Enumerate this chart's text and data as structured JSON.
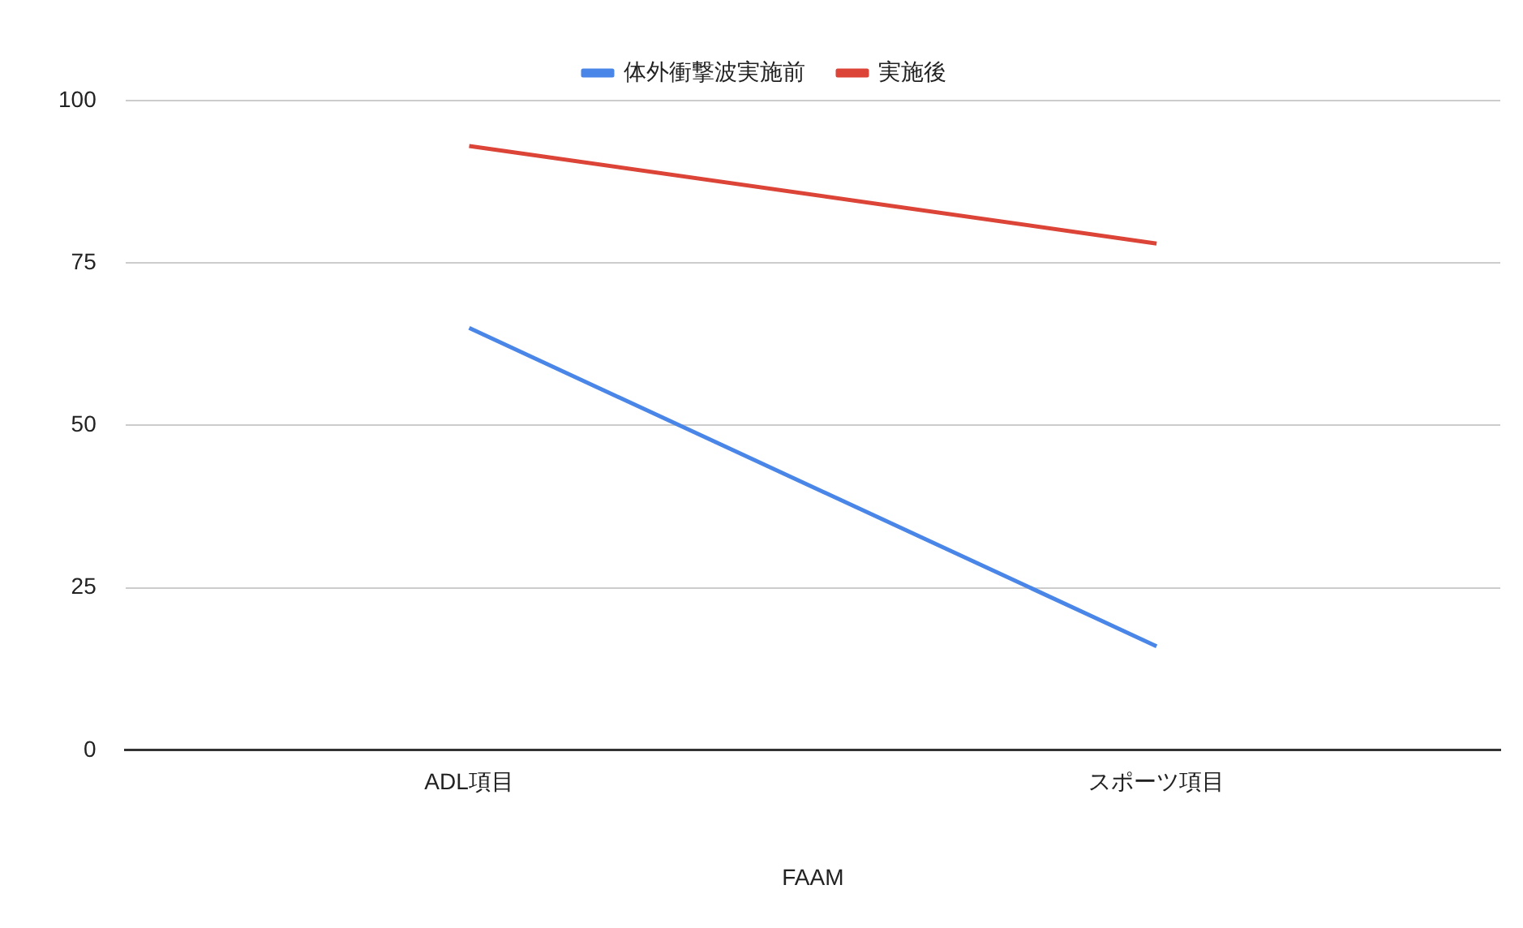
{
  "chart_data": {
    "type": "line",
    "xlabel": "FAAM",
    "categories": [
      "ADL項目",
      "スポーツ項目"
    ],
    "series": [
      {
        "name": "体外衝撃波実施前",
        "color": "#4a86e8",
        "values": [
          65,
          16
        ]
      },
      {
        "name": "実施後",
        "color": "#db4437",
        "values": [
          93,
          78
        ]
      }
    ],
    "ylim": [
      0,
      100
    ],
    "yticks": [
      0,
      25,
      50,
      75,
      100
    ],
    "grid": "y",
    "legend": "top",
    "marker": "none"
  }
}
